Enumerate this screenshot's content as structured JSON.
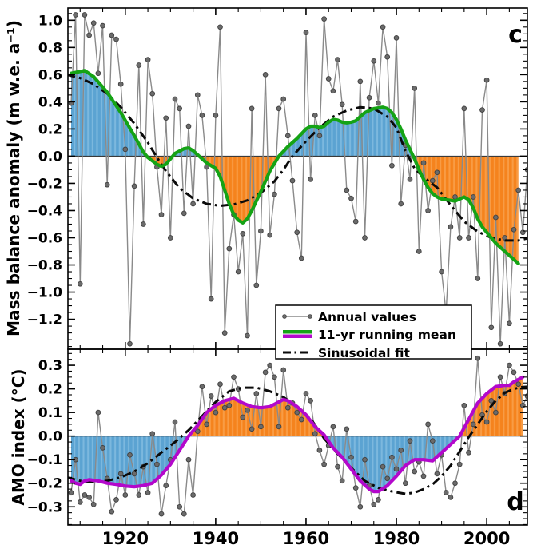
{
  "figure": {
    "description": "Two stacked time-series panels comparing Alpine glacier mass balance anomaly (panel c) and the AMO index (panel d), each with annual values, an 11-yr running mean and a sinusoidal fit, with positive/negative areas of the running mean shaded.",
    "panel_c_letter": "c",
    "panel_d_letter": "d"
  },
  "legend": {
    "annual_label": "Annual values",
    "running_mean_label": "11-yr running mean",
    "sinusoidal_label": "Sinusoidal fit"
  },
  "colors": {
    "blue_fill": "#5ba3d2",
    "blue_fill_stripe": "#7cb8de",
    "orange_fill": "#f5831d",
    "orange_fill_stripe": "#f89c45",
    "green_line": "#15a315",
    "magenta_line": "#b308cb",
    "annual_line": "#8a8a8a",
    "annual_dot": "#6b6b6b",
    "annual_dot_edge": "#404040",
    "sinusoid_line": "#0a0a0a",
    "axis": "#000000"
  },
  "chart_data": [
    {
      "type": "line",
      "panel_label": "c",
      "ylabel": "Mass balance anomaly (m w.e. a⁻¹)",
      "xlabel": "",
      "xlim": [
        1907.3,
        2009.0
      ],
      "ylim": [
        -1.42,
        1.09
      ],
      "xticks": [
        1920,
        1940,
        1960,
        1980,
        2000
      ],
      "xtick_minor_step": 5,
      "yticks": [
        1.0,
        0.8,
        0.6,
        0.4,
        0.2,
        0.0,
        -0.2,
        -0.4,
        -0.6,
        -0.8,
        -1.0,
        -1.2
      ],
      "ytick_minor_step": 0.05,
      "zero_line": true,
      "grid": false,
      "fill_between_mean_and_zero": {
        "positive": "#5ba3d2",
        "negative": "#f5831d"
      },
      "series": [
        {
          "id": "annual",
          "name": "Annual values",
          "start_year": 1908,
          "values": [
            0.39,
            1.04,
            -0.94,
            1.04,
            0.89,
            0.98,
            0.61,
            0.96,
            -0.21,
            0.89,
            0.86,
            0.53,
            0.05,
            -1.38,
            -0.22,
            0.67,
            -0.5,
            0.71,
            0.46,
            -0.08,
            -0.43,
            0.28,
            -0.6,
            0.42,
            0.35,
            -0.42,
            0.22,
            -0.35,
            0.45,
            0.3,
            -0.08,
            -1.05,
            0.3,
            0.95,
            -1.3,
            -0.68,
            -0.43,
            -0.85,
            -0.57,
            -1.32,
            0.35,
            -0.95,
            -0.55,
            0.6,
            -0.58,
            -0.28,
            0.35,
            0.42,
            0.15,
            -0.18,
            -0.56,
            -0.75,
            0.91,
            -0.17,
            0.3,
            0.15,
            1.01,
            0.57,
            0.48,
            0.71,
            0.38,
            -0.25,
            -0.31,
            -0.48,
            0.55,
            -0.6,
            0.43,
            0.7,
            0.39,
            0.95,
            0.73,
            -0.07,
            0.87,
            -0.35,
            0.08,
            -0.17,
            0.5,
            -0.7,
            -0.05,
            -0.4,
            -0.18,
            -0.12,
            -0.85,
            -1.15,
            -0.52,
            -0.3,
            -0.6,
            0.35,
            -0.6,
            -0.3,
            -0.9,
            0.34,
            0.56,
            -1.26,
            -0.45,
            -1.38,
            -0.6,
            -1.23,
            -0.54,
            -0.25,
            -0.56,
            -0.1,
            -0.5
          ]
        },
        {
          "id": "running_mean",
          "name": "11-yr running mean",
          "color": "#15a315",
          "x": [
            1908,
            1911,
            1913,
            1916,
            1919,
            1922,
            1924,
            1925,
            1927,
            1928,
            1929,
            1930,
            1931,
            1933,
            1934,
            1935,
            1936,
            1938,
            1940,
            1941,
            1942,
            1943,
            1944,
            1945,
            1946,
            1947,
            1948,
            1950,
            1952,
            1954,
            1956,
            1958,
            1960,
            1961,
            1962,
            1963,
            1964,
            1965,
            1966,
            1967,
            1968,
            1969,
            1970,
            1971,
            1972,
            1973,
            1975,
            1977,
            1978,
            1979,
            1980,
            1981,
            1982,
            1983,
            1984,
            1985,
            1986,
            1987,
            1988,
            1989,
            1990,
            1992,
            1993,
            1994,
            1995,
            1996,
            1997,
            1998,
            1999,
            2000,
            2001,
            2002,
            2003,
            2004,
            2005,
            2006,
            2007
          ],
          "y": [
            0.61,
            0.63,
            0.585,
            0.47,
            0.32,
            0.15,
            0.03,
            -0.01,
            -0.06,
            -0.075,
            -0.06,
            -0.02,
            0.02,
            0.055,
            0.06,
            0.04,
            0.01,
            -0.05,
            -0.09,
            -0.15,
            -0.25,
            -0.35,
            -0.43,
            -0.47,
            -0.49,
            -0.46,
            -0.4,
            -0.26,
            -0.11,
            0.0,
            0.07,
            0.13,
            0.2,
            0.22,
            0.22,
            0.21,
            0.22,
            0.25,
            0.27,
            0.265,
            0.25,
            0.245,
            0.25,
            0.26,
            0.29,
            0.32,
            0.35,
            0.36,
            0.35,
            0.32,
            0.27,
            0.2,
            0.12,
            0.05,
            -0.02,
            -0.1,
            -0.17,
            -0.23,
            -0.275,
            -0.3,
            -0.315,
            -0.325,
            -0.33,
            -0.315,
            -0.3,
            -0.32,
            -0.38,
            -0.46,
            -0.52,
            -0.56,
            -0.6,
            -0.64,
            -0.67,
            -0.7,
            -0.73,
            -0.76,
            -0.79
          ]
        },
        {
          "id": "sinusoidal_fit",
          "name": "Sinusoidal fit",
          "color": "#0a0a0a",
          "x": [
            1907,
            1910,
            1913,
            1916,
            1919,
            1922,
            1925,
            1927,
            1929,
            1932,
            1935,
            1938,
            1941,
            1944,
            1947,
            1950,
            1953,
            1955,
            1957,
            1960,
            1963,
            1966,
            1969,
            1972,
            1975,
            1978,
            1980,
            1982,
            1984,
            1986,
            1989,
            1992,
            1995,
            1998,
            2001,
            2004,
            2007,
            2009.5
          ],
          "y": [
            0.6,
            0.575,
            0.53,
            0.46,
            0.36,
            0.24,
            0.1,
            -0.01,
            -0.11,
            -0.235,
            -0.31,
            -0.35,
            -0.365,
            -0.355,
            -0.325,
            -0.27,
            -0.185,
            -0.1,
            0.0,
            0.11,
            0.21,
            0.29,
            0.335,
            0.36,
            0.35,
            0.29,
            0.21,
            0.04,
            -0.09,
            -0.155,
            -0.23,
            -0.36,
            -0.48,
            -0.555,
            -0.6,
            -0.62,
            -0.62,
            -0.6
          ]
        }
      ]
    },
    {
      "type": "line",
      "panel_label": "d",
      "ylabel": "AMO index (°C)",
      "xlabel": "",
      "xlim": [
        1907.3,
        2009.0
      ],
      "ylim": [
        -0.377,
        0.368
      ],
      "xticks": [
        1920,
        1940,
        1960,
        1980,
        2000
      ],
      "xtick_minor_step": 5,
      "yticks": [
        0.3,
        0.2,
        0.1,
        0.0,
        -0.1,
        -0.2,
        -0.3
      ],
      "ytick_minor_step": 0.025,
      "zero_line": true,
      "grid": false,
      "fill_between_mean_and_zero": {
        "positive": "#f5831d",
        "negative": "#5ba3d2"
      },
      "series": [
        {
          "id": "annual",
          "name": "Annual values",
          "start_year": 1908,
          "values": [
            -0.24,
            -0.1,
            -0.28,
            -0.25,
            -0.26,
            -0.29,
            0.1,
            -0.05,
            -0.18,
            -0.32,
            -0.27,
            -0.16,
            -0.25,
            -0.08,
            -0.16,
            -0.25,
            -0.13,
            -0.24,
            0.01,
            -0.12,
            -0.33,
            -0.21,
            -0.1,
            0.06,
            -0.3,
            -0.33,
            -0.1,
            -0.25,
            0.02,
            0.21,
            0.05,
            0.17,
            0.1,
            0.22,
            0.12,
            0.13,
            0.25,
            0.2,
            0.08,
            0.11,
            0.03,
            0.18,
            0.04,
            0.27,
            0.3,
            0.25,
            0.04,
            0.28,
            0.12,
            0.14,
            0.1,
            0.07,
            0.18,
            0.15,
            0.01,
            -0.06,
            -0.12,
            -0.04,
            0.04,
            -0.13,
            -0.19,
            0.03,
            -0.09,
            -0.22,
            -0.3,
            -0.1,
            -0.21,
            -0.29,
            -0.27,
            -0.13,
            -0.18,
            -0.09,
            -0.14,
            -0.06,
            -0.2,
            -0.02,
            -0.15,
            -0.11,
            -0.17,
            0.05,
            -0.02,
            -0.16,
            -0.08,
            -0.24,
            -0.26,
            -0.2,
            -0.12,
            0.13,
            -0.07,
            0.05,
            0.33,
            0.09,
            0.06,
            0.15,
            0.1,
            0.25,
            0.18,
            0.3,
            0.27,
            0.22,
            0.13,
            0.17,
            0.3
          ]
        },
        {
          "id": "running_mean",
          "name": "11-yr running mean",
          "color": "#b308cb",
          "x": [
            1908,
            1909,
            1910,
            1911,
            1912,
            1914,
            1916,
            1918,
            1920,
            1922,
            1924,
            1926,
            1928,
            1930,
            1932,
            1934,
            1936,
            1938,
            1940,
            1942,
            1944,
            1946,
            1948,
            1950,
            1952,
            1954,
            1955,
            1956,
            1958,
            1960,
            1962,
            1964,
            1966,
            1968,
            1970,
            1972,
            1974,
            1975,
            1976,
            1978,
            1980,
            1982,
            1984,
            1986,
            1988,
            1990,
            1992,
            1994,
            1996,
            1998,
            2000,
            2002,
            2004,
            2005,
            2006,
            2008
          ],
          "y": [
            -0.19,
            -0.2,
            -0.205,
            -0.19,
            -0.185,
            -0.19,
            -0.2,
            -0.205,
            -0.212,
            -0.215,
            -0.21,
            -0.2,
            -0.165,
            -0.12,
            -0.06,
            0.0,
            0.045,
            0.1,
            0.13,
            0.15,
            0.16,
            0.14,
            0.125,
            0.12,
            0.125,
            0.145,
            0.155,
            0.15,
            0.125,
            0.09,
            0.04,
            0.005,
            -0.05,
            -0.09,
            -0.14,
            -0.19,
            -0.225,
            -0.235,
            -0.235,
            -0.21,
            -0.17,
            -0.125,
            -0.1,
            -0.1,
            -0.105,
            -0.07,
            -0.035,
            0.0,
            0.07,
            0.14,
            0.18,
            0.21,
            0.215,
            0.215,
            0.23,
            0.25
          ]
        },
        {
          "id": "sinusoidal_fit",
          "name": "Sinusoidal fit",
          "color": "#0a0a0a",
          "x": [
            1907,
            1910,
            1913,
            1916,
            1919,
            1922,
            1925,
            1928,
            1931,
            1934,
            1937,
            1940,
            1943,
            1946,
            1949,
            1952,
            1955,
            1958,
            1961,
            1964,
            1967,
            1970,
            1973,
            1976,
            1979,
            1982,
            1984,
            1986,
            1988,
            1990,
            1992,
            1994,
            1996,
            1998,
            2000,
            2002,
            2004,
            2006,
            2008,
            2009.5
          ],
          "y": [
            -0.175,
            -0.19,
            -0.195,
            -0.19,
            -0.175,
            -0.15,
            -0.115,
            -0.07,
            -0.025,
            0.025,
            0.085,
            0.145,
            0.19,
            0.205,
            0.205,
            0.19,
            0.165,
            0.125,
            0.075,
            -0.01,
            -0.075,
            -0.135,
            -0.19,
            -0.22,
            -0.235,
            -0.245,
            -0.24,
            -0.225,
            -0.205,
            -0.17,
            -0.125,
            -0.065,
            -0.005,
            0.05,
            0.105,
            0.15,
            0.183,
            0.2,
            0.208,
            0.21
          ]
        }
      ]
    }
  ]
}
